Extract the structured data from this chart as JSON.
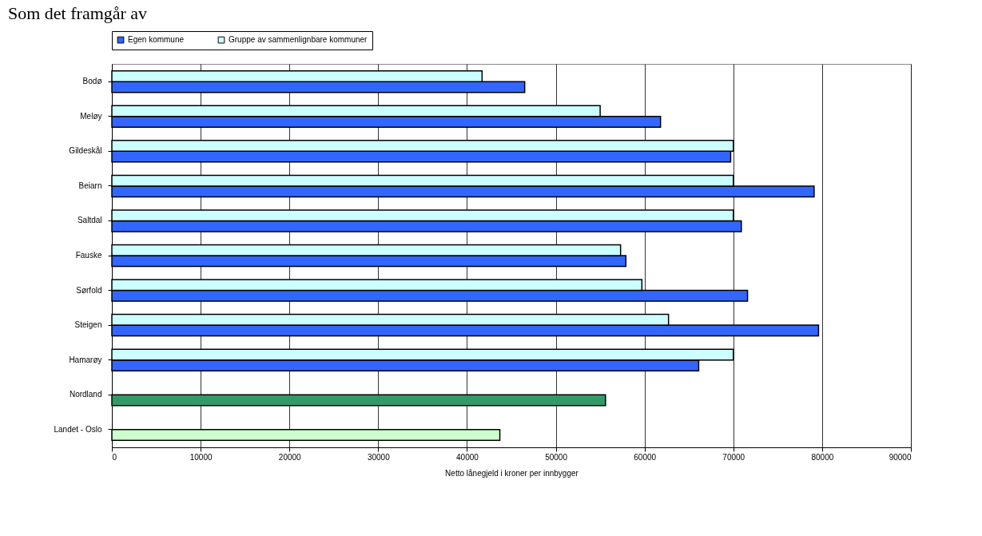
{
  "chart_data": {
    "type": "bar",
    "orientation": "horizontal",
    "title": "Som det framgår av",
    "xlabel": "Netto lånegjeld i kroner per innbygger",
    "categories": [
      "Bodø",
      "Meløy",
      "Gildeskål",
      "Beiarn",
      "Saltdal",
      "Fauske",
      "Sørfold",
      "Steigen",
      "Hamarøy",
      "Nordland",
      "Landet - Oslo"
    ],
    "series": [
      {
        "name": "Egen kommune",
        "color": "#3366ff",
        "colors": [
          "#3366ff",
          "#3366ff",
          "#3366ff",
          "#3366ff",
          "#3366ff",
          "#3366ff",
          "#3366ff",
          "#3366ff",
          "#3366ff",
          "#339966",
          "#ccffcc"
        ],
        "values": [
          46500,
          61800,
          69700,
          79100,
          70900,
          57900,
          71600,
          79600,
          66100,
          55600,
          43700
        ]
      },
      {
        "name": "Gruppe av sammenlignbare kommuner",
        "color": "#ccffff",
        "values": [
          41700,
          55000,
          70000,
          70000,
          70000,
          57300,
          59700,
          62700,
          70000,
          null,
          null
        ]
      }
    ],
    "xlim": [
      0,
      90000
    ],
    "xticks": [
      0,
      10000,
      20000,
      30000,
      40000,
      50000,
      60000,
      70000,
      80000,
      90000
    ],
    "grid": "x",
    "legend": "top"
  }
}
